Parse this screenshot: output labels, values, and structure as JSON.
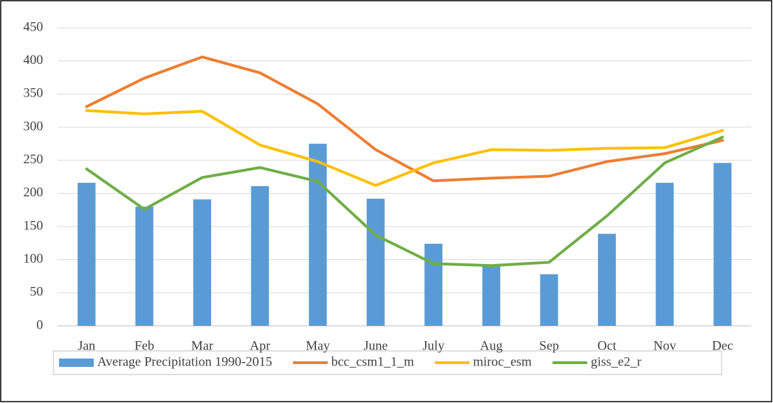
{
  "chart_data": {
    "type": "combo",
    "categories": [
      "Jan",
      "Feb",
      "Mar",
      "Apr",
      "May",
      "June",
      "July",
      "Aug",
      "Sep",
      "Oct",
      "Nov",
      "Dec"
    ],
    "ylim": [
      0,
      450
    ],
    "yticks": [
      0,
      50,
      100,
      150,
      200,
      250,
      300,
      350,
      400,
      450
    ],
    "grid": true,
    "legend": "bottom",
    "series": [
      {
        "name": "Average Precipitation 1990-2015",
        "type": "bar",
        "color": "#5b9bd5",
        "values": [
          216,
          180,
          191,
          211,
          275,
          192,
          124,
          90,
          78,
          139,
          216,
          246
        ]
      },
      {
        "name": "bcc_csm1_1_m",
        "type": "line",
        "color": "#ed7d31",
        "values": [
          331,
          374,
          406,
          382,
          335,
          266,
          219,
          223,
          226,
          248,
          260,
          280
        ]
      },
      {
        "name": "miroc_esm",
        "type": "line",
        "color": "#ffc000",
        "values": [
          325,
          320,
          324,
          273,
          248,
          212,
          246,
          266,
          265,
          268,
          269,
          295
        ]
      },
      {
        "name": "giss_e2_r",
        "type": "line",
        "color": "#70ad47",
        "values": [
          237,
          176,
          224,
          239,
          218,
          137,
          94,
          91,
          96,
          166,
          246,
          285
        ]
      }
    ]
  }
}
